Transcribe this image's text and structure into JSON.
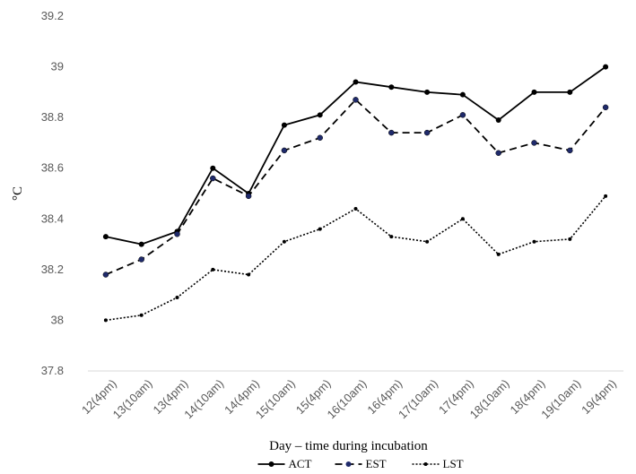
{
  "chart_data": {
    "type": "line",
    "title": "",
    "xlabel": "Day – time during incubation",
    "ylabel": "°C",
    "ylim": [
      37.8,
      39.2
    ],
    "ytick_step": 0.2,
    "yticks": [
      "37.8",
      "38",
      "38.2",
      "38.4",
      "38.6",
      "38.8",
      "39",
      "39.2"
    ],
    "grid": false,
    "legend_position": "bottom",
    "categories": [
      "12(4pm)",
      "13(10am)",
      "13(4pm)",
      "14(10am)",
      "14(4pm)",
      "15(10am)",
      "15(4pm)",
      "16(10am)",
      "16(4pm)",
      "17(10am)",
      "17(4pm)",
      "18(10am)",
      "18(4pm)",
      "19(10am)",
      "19(4pm)"
    ],
    "series": [
      {
        "name": "ACT",
        "color": "#000000",
        "marker_color": "#000000",
        "style": "solid",
        "values": [
          38.33,
          38.3,
          38.35,
          38.6,
          38.5,
          38.77,
          38.81,
          38.94,
          38.92,
          38.9,
          38.89,
          38.79,
          38.9,
          38.9,
          39.0
        ]
      },
      {
        "name": "EST",
        "color": "#000000",
        "marker_color": "#1f2a6b",
        "style": "dashed",
        "values": [
          38.18,
          38.24,
          38.34,
          38.56,
          38.49,
          38.67,
          38.72,
          38.87,
          38.74,
          38.74,
          38.81,
          38.66,
          38.7,
          38.67,
          38.84
        ]
      },
      {
        "name": "LST",
        "color": "#000000",
        "marker_color": "#000000",
        "style": "dotted",
        "values": [
          38.0,
          38.02,
          38.09,
          38.2,
          38.18,
          38.31,
          38.36,
          38.44,
          38.33,
          38.31,
          38.4,
          38.26,
          38.31,
          38.32,
          38.49
        ]
      }
    ]
  }
}
